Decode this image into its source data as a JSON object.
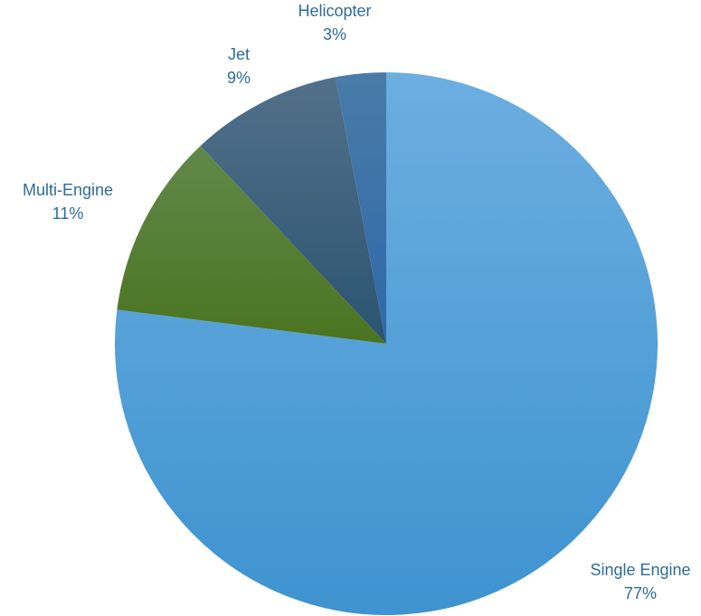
{
  "chart_data": {
    "type": "pie",
    "categories": [
      "Single Engine",
      "Multi-Engine",
      "Jet",
      "Helicopter"
    ],
    "values": [
      77,
      11,
      9,
      3
    ],
    "value_labels": [
      "77%",
      "11%",
      "9%",
      "3%"
    ],
    "start_angle_deg": 0,
    "direction": "clockwise",
    "legend": "none",
    "colors": {
      "label_text": "#2E6B9C",
      "slices": [
        {
          "fill_top": "#6CAEE0",
          "fill_bottom": "#3E93D0"
        },
        {
          "fill_top": "#62884A",
          "fill_bottom": "#4A7420"
        },
        {
          "fill_top": "#52708A",
          "fill_bottom": "#2A5470"
        },
        {
          "fill_top": "#4A7BA8",
          "fill_bottom": "#2C69A8"
        }
      ]
    }
  }
}
